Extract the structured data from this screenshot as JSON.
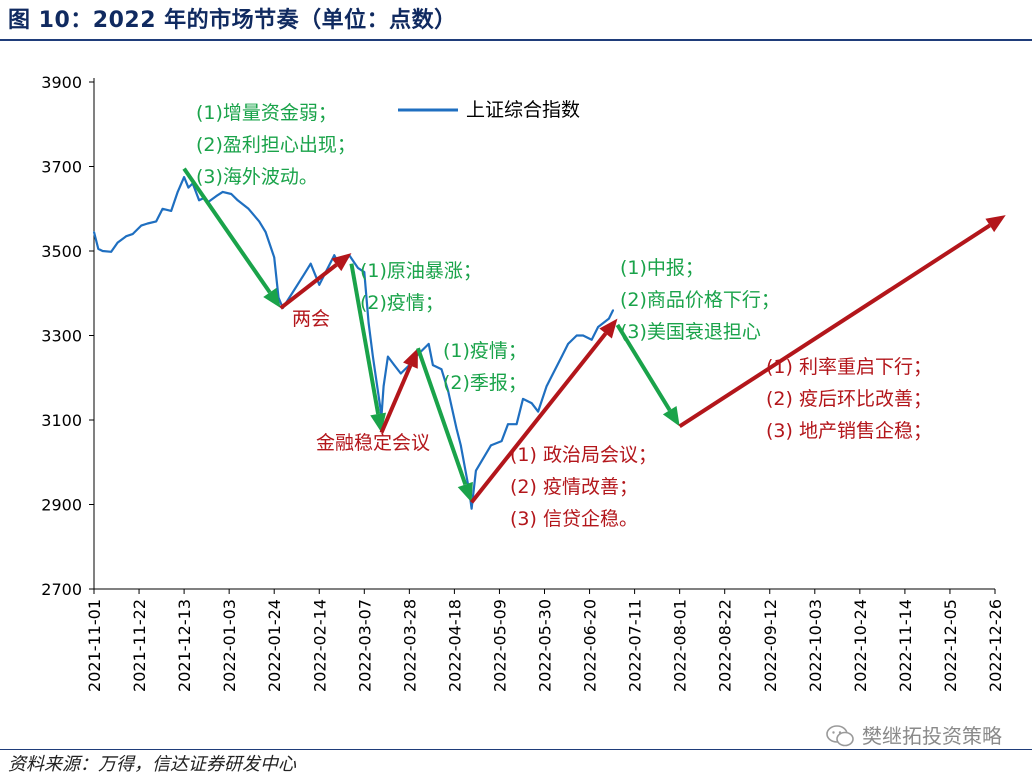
{
  "title": "图 10：2022 年的市场节奏（单位：点数）",
  "source": "资料来源：万得，信达证券研发中心",
  "watermark": "樊继拓投资策略",
  "colors": {
    "series": "#1f6fc0",
    "green_arrow": "#1aa34a",
    "red_arrow": "#b3161b",
    "title": "#102a60"
  },
  "chart_data": {
    "type": "line",
    "title": "",
    "xlabel": "",
    "ylabel": "",
    "ylim": [
      2700,
      3900
    ],
    "yticks": [
      2700,
      2900,
      3100,
      3300,
      3500,
      3700,
      3900
    ],
    "xticks": [
      "2021-11-01",
      "2021-11-22",
      "2021-12-13",
      "2022-01-03",
      "2022-01-24",
      "2022-02-14",
      "2022-03-07",
      "2022-03-28",
      "2022-04-18",
      "2022-05-09",
      "2022-05-30",
      "2022-06-20",
      "2022-07-11",
      "2022-08-01",
      "2022-08-22",
      "2022-09-12",
      "2022-10-03",
      "2022-10-24",
      "2022-11-14",
      "2022-12-05",
      "2022-12-26"
    ],
    "legend": {
      "position": "top",
      "entries": [
        "上证综合指数"
      ]
    },
    "series": [
      {
        "name": "上证综合指数",
        "x": [
          "2021-11-01",
          "2021-11-03",
          "2021-11-05",
          "2021-11-09",
          "2021-11-12",
          "2021-11-16",
          "2021-11-19",
          "2021-11-23",
          "2021-11-26",
          "2021-11-30",
          "2021-12-03",
          "2021-12-07",
          "2021-12-10",
          "2021-12-13",
          "2021-12-15",
          "2021-12-17",
          "2021-12-20",
          "2021-12-22",
          "2021-12-24",
          "2021-12-28",
          "2021-12-31",
          "2022-01-04",
          "2022-01-07",
          "2022-01-12",
          "2022-01-17",
          "2022-01-20",
          "2022-01-24",
          "2022-01-26",
          "2022-01-28",
          "2022-02-07",
          "2022-02-10",
          "2022-02-14",
          "2022-02-17",
          "2022-02-21",
          "2022-02-24",
          "2022-02-28",
          "2022-03-02",
          "2022-03-04",
          "2022-03-07",
          "2022-03-09",
          "2022-03-11",
          "2022-03-15",
          "2022-03-16",
          "2022-03-18",
          "2022-03-21",
          "2022-03-24",
          "2022-03-28",
          "2022-03-31",
          "2022-04-06",
          "2022-04-08",
          "2022-04-12",
          "2022-04-15",
          "2022-04-19",
          "2022-04-21",
          "2022-04-25",
          "2022-04-26",
          "2022-04-28",
          "2022-05-05",
          "2022-05-10",
          "2022-05-13",
          "2022-05-17",
          "2022-05-20",
          "2022-05-24",
          "2022-05-27",
          "2022-05-31",
          "2022-06-02",
          "2022-06-07",
          "2022-06-10",
          "2022-06-14",
          "2022-06-17",
          "2022-06-21",
          "2022-06-24",
          "2022-06-29",
          "2022-07-01"
        ],
        "values": [
          3545,
          3505,
          3500,
          3498,
          3520,
          3535,
          3540,
          3560,
          3565,
          3570,
          3600,
          3595,
          3640,
          3675,
          3650,
          3660,
          3620,
          3625,
          3615,
          3630,
          3640,
          3635,
          3620,
          3600,
          3570,
          3545,
          3485,
          3390,
          3365,
          3445,
          3470,
          3420,
          3450,
          3490,
          3460,
          3490,
          3475,
          3460,
          3450,
          3330,
          3250,
          3110,
          3180,
          3250,
          3230,
          3210,
          3230,
          3250,
          3280,
          3230,
          3220,
          3170,
          3080,
          3040,
          2930,
          2890,
          2980,
          3040,
          3050,
          3090,
          3090,
          3150,
          3140,
          3120,
          3180,
          3200,
          3250,
          3280,
          3300,
          3300,
          3290,
          3320,
          3340,
          3360
        ]
      }
    ],
    "arrows": [
      {
        "color": "green",
        "from": [
          "2021-12-13",
          3695
        ],
        "to": [
          "2022-01-27",
          3365
        ]
      },
      {
        "color": "red",
        "from": [
          "2022-01-27",
          3365
        ],
        "to": [
          "2022-03-01",
          3495
        ]
      },
      {
        "color": "green",
        "from": [
          "2022-03-01",
          3470
        ],
        "to": [
          "2022-03-15",
          3070
        ]
      },
      {
        "color": "red",
        "from": [
          "2022-03-15",
          3070
        ],
        "to": [
          "2022-04-01",
          3270
        ]
      },
      {
        "color": "green",
        "from": [
          "2022-04-01",
          3270
        ],
        "to": [
          "2022-04-26",
          2905
        ]
      },
      {
        "color": "red",
        "from": [
          "2022-04-26",
          2905
        ],
        "to": [
          "2022-07-03",
          3340
        ]
      },
      {
        "color": "green",
        "from": [
          "2022-07-03",
          3325
        ],
        "to": [
          "2022-08-01",
          3085
        ]
      },
      {
        "color": "red",
        "from": [
          "2022-08-01",
          3085
        ],
        "to": [
          "2022-12-31",
          3585
        ]
      }
    ],
    "annotations": [
      {
        "color": "green",
        "lines": [
          "(1)增量资金弱；",
          "(2)盈利担心出现；",
          "(3)海外波动。"
        ]
      },
      {
        "color": "red",
        "lines": [
          "两会"
        ]
      },
      {
        "color": "green",
        "lines": [
          "(1)原油暴涨；",
          "(2)疫情；"
        ]
      },
      {
        "color": "red",
        "lines": [
          "金融稳定会议"
        ]
      },
      {
        "color": "green",
        "lines": [
          "(1)疫情；",
          "(2)季报；"
        ]
      },
      {
        "color": "red",
        "lines": [
          "(1) 政治局会议；",
          "(2) 疫情改善；",
          "(3) 信贷企稳。"
        ]
      },
      {
        "color": "green",
        "lines": [
          "(1)中报；",
          "(2)商品价格下行；",
          "(3)美国衰退担心"
        ]
      },
      {
        "color": "red",
        "lines": [
          "(1) 利率重启下行；",
          "(2) 疫后环比改善；",
          "(3) 地产销售企稳；"
        ]
      }
    ]
  }
}
